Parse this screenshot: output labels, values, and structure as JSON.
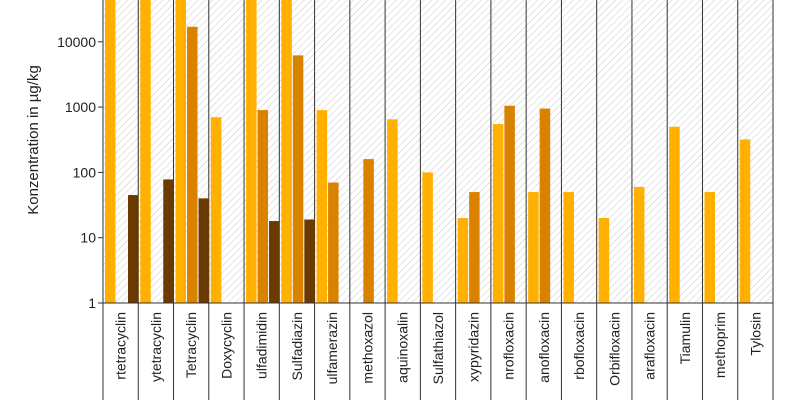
{
  "chart_data": {
    "type": "bar",
    "ylabel": "Konzentration in µg/kg",
    "yscale": "log",
    "ylim": [
      1,
      100000
    ],
    "ytick_values": [
      1,
      10,
      100,
      1000,
      10000
    ],
    "ytick_labels": [
      "1",
      "10",
      "100",
      "1000",
      "10000"
    ],
    "grid": "none",
    "categories": [
      "Oxytetracyclin (partial: rtetracyclin)",
      "Oxytetracyclin (partial: ytetracyclin)",
      "Tetracyclin",
      "Doxycyclin",
      "Sulfadimidin (partial: ulfadimidin)",
      "Sulfadiazin",
      "Sulfamerazin (partial: ulfamerazin)",
      "Sulfamethoxazol (partial: methoxazol)",
      "Olaquinoxalin (partial: aquinoxalin)",
      "Sulfathiazol",
      "Sulfamethoxypyridazin (partial: xypyridazin)",
      "Enrofloxacin (partial: nrofloxacin)",
      "Danofloxacin (partial: anofloxacin)",
      "Marbofloxacin (partial: rbofloxacin)",
      "Orbifloxacin",
      "Sarafloxacin (partial: arafloxacin)",
      "Tiamulin",
      "Trimethoprim (partial: methoprim)",
      "Tylosin"
    ],
    "category_labels_visible": [
      "rtetracyclin",
      "ytetracyclin",
      "Tetracyclin",
      "Doxycyclin",
      "ulfadimidin",
      "Sulfadiazin",
      "ulfamerazin",
      "methoxazol",
      "aquinoxalin",
      "Sulfathiazol",
      "xypyridazin",
      "nrofloxacin",
      "anofloxacin",
      "rbofloxacin",
      "Orbifloxacin",
      "arafloxacin",
      "Tiamulin",
      "methoprim",
      "Tylosin"
    ],
    "series": [
      {
        "color": "#FFB000",
        "values": [
          150000,
          150000,
          150000,
          700,
          150000,
          150000,
          900,
          null,
          650,
          100,
          20,
          550,
          50,
          50,
          20,
          60,
          500,
          50,
          320
        ]
      },
      {
        "color": "#D98200",
        "values": [
          null,
          null,
          17000,
          null,
          900,
          6200,
          70,
          160,
          null,
          null,
          50,
          1050,
          950,
          null,
          null,
          null,
          null,
          null,
          null
        ]
      },
      {
        "color": "#6B3A00",
        "values": [
          45,
          78,
          40,
          null,
          18,
          19,
          null,
          null,
          null,
          null,
          null,
          null,
          null,
          null,
          null,
          null,
          null,
          null,
          null
        ]
      }
    ]
  }
}
